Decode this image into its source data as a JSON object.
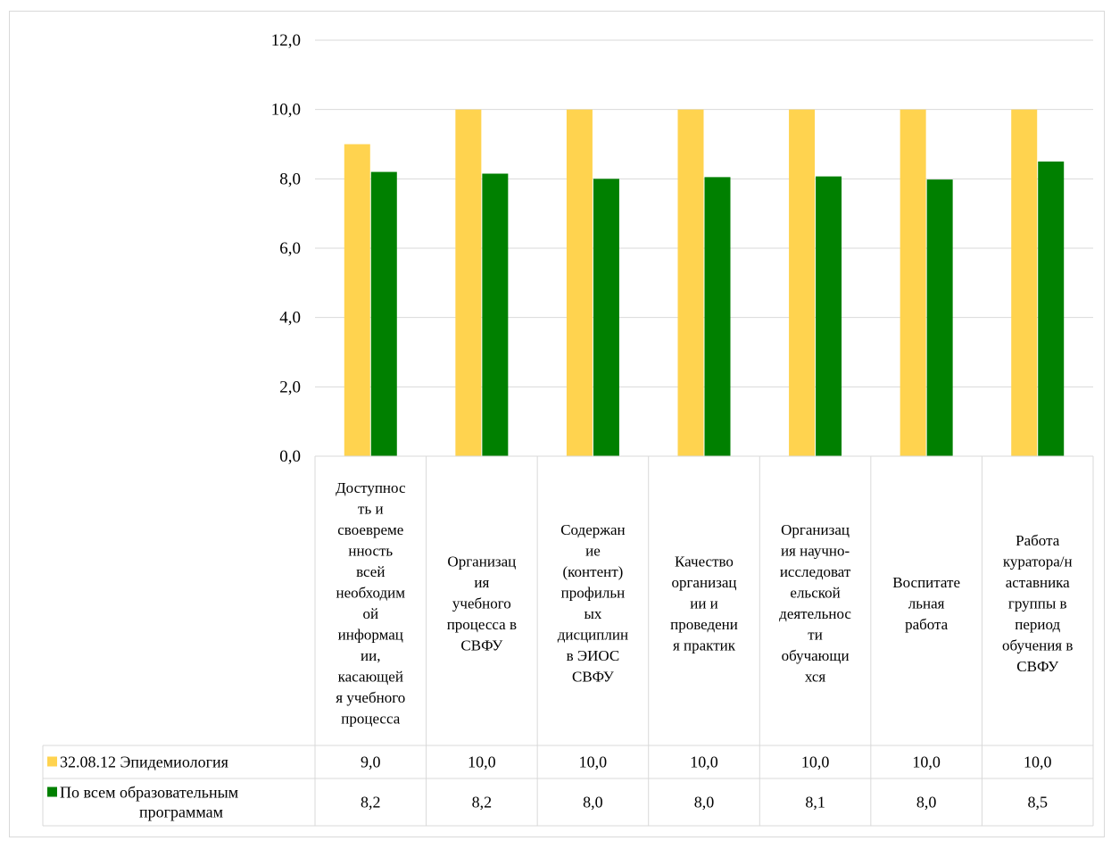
{
  "chart_data": {
    "type": "bar",
    "title": "",
    "xlabel": "",
    "ylabel": "",
    "ylim": [
      0,
      12
    ],
    "yticks": [
      "0,0",
      "2,0",
      "4,0",
      "6,0",
      "8,0",
      "10,0",
      "12,0"
    ],
    "grid": true,
    "legend": "data-table",
    "categories": [
      [
        "Доступнос",
        "ть и",
        "своевреме",
        "нность",
        "всей",
        "необходим",
        "ой",
        "информац",
        "ии,",
        "касающей",
        "я учебного",
        "процесса"
      ],
      [
        "Организац",
        "ия",
        "учебного",
        "процесса в",
        "СВФУ"
      ],
      [
        "Содержан",
        "ие",
        "(контент)",
        "профильн",
        "ых",
        "дисциплин",
        "в ЭИОС",
        "СВФУ"
      ],
      [
        "Качество",
        "организац",
        "ии и",
        "проведени",
        "я практик"
      ],
      [
        "Организац",
        "ия научно-",
        "исследоват",
        "ельской",
        "деятельнос",
        "ти",
        "обучающи",
        "хся"
      ],
      [
        "Воспитате",
        "льная",
        "работа"
      ],
      [
        "Работа",
        "куратора/н",
        "аставника",
        "группы в",
        "период",
        "обучения в",
        "СВФУ"
      ]
    ],
    "series": [
      {
        "name": [
          "32.08.12 Эпидемиология"
        ],
        "color": "#FFD34F",
        "values": [
          9.0,
          10.0,
          10.0,
          10.0,
          10.0,
          10.0,
          10.0
        ],
        "labels": [
          "9,0",
          "10,0",
          "10,0",
          "10,0",
          "10,0",
          "10,0",
          "10,0"
        ]
      },
      {
        "name": [
          "По всем образовательным",
          "программам"
        ],
        "color": "#008000",
        "values": [
          8.2,
          8.15,
          8.0,
          8.05,
          8.07,
          7.98,
          8.5
        ],
        "labels": [
          "8,2",
          "8,2",
          "8,0",
          "8,0",
          "8,1",
          "8,0",
          "8,5"
        ]
      }
    ]
  }
}
